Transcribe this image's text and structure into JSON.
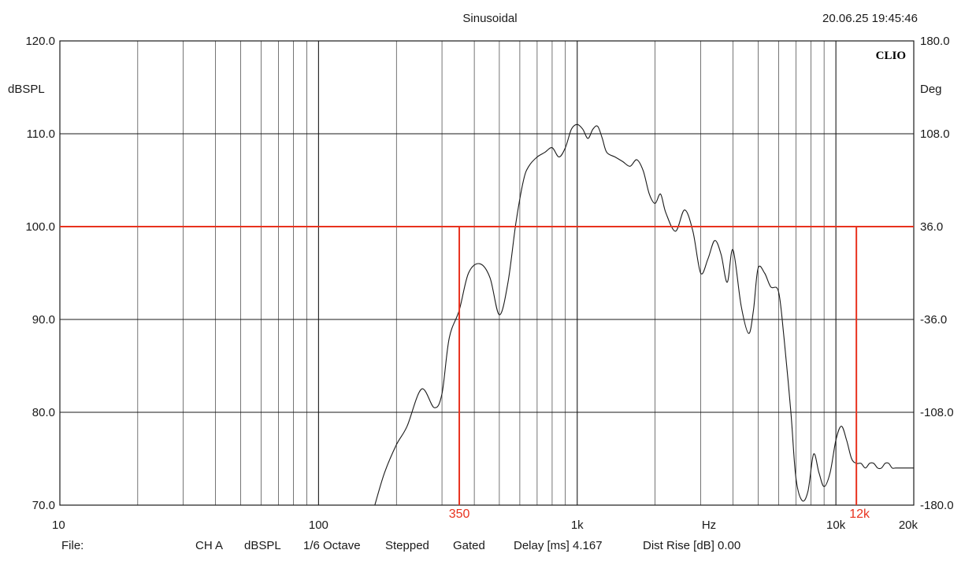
{
  "header": {
    "mode": "Sinusoidal",
    "timestamp": "20.06.25 19:45:46",
    "brand": "CLIO"
  },
  "footer": {
    "file_label": "File:",
    "channel": "CH A",
    "unit": "dBSPL",
    "smoothing": "1/6 Octave",
    "sweep": "Stepped",
    "window": "Gated",
    "delay": "Delay [ms] 4.167",
    "dist_rise": "Dist Rise [dB] 0.00"
  },
  "colors": {
    "trace": "#1a1a1a",
    "markers": "#e8321e",
    "grid": "#1a1a1a",
    "background": "#ffffff"
  },
  "chart_data": {
    "type": "line",
    "title": "Sinusoidal",
    "xlabel": "Hz",
    "ylabel": "dBSPL",
    "y2label": "Deg",
    "x_scale": "log",
    "xlim": [
      10,
      20000
    ],
    "ylim": [
      70,
      120
    ],
    "y2lim": [
      -180,
      180
    ],
    "grid": true,
    "x_ticks": [
      {
        "value": 10,
        "label": "10"
      },
      {
        "value": 100,
        "label": "100"
      },
      {
        "value": 1000,
        "label": "1k"
      },
      {
        "value": 10000,
        "label": "10k"
      },
      {
        "value": 20000,
        "label": "20k"
      }
    ],
    "x_unit_label": "Hz",
    "y_ticks": [
      {
        "value": 120,
        "label": "120.0"
      },
      {
        "value": 110,
        "label": "110.0"
      },
      {
        "value": 100,
        "label": "100.0"
      },
      {
        "value": 90,
        "label": "90.0"
      },
      {
        "value": 80,
        "label": "80.0"
      },
      {
        "value": 70,
        "label": "70.0"
      }
    ],
    "y2_ticks": [
      {
        "value": 180,
        "label": "180.0"
      },
      {
        "value": 108,
        "label": "108.0"
      },
      {
        "value": 36,
        "label": "36.0"
      },
      {
        "value": -36,
        "label": "-36.0"
      },
      {
        "value": -108,
        "label": "-108.0"
      },
      {
        "value": -180,
        "label": "-180.0"
      }
    ],
    "series": [
      {
        "x": [
          165,
          180,
          200,
          220,
          250,
          280,
          300,
          320,
          350,
          380,
          420,
          460,
          500,
          540,
          580,
          620,
          650,
          700,
          750,
          800,
          850,
          900,
          950,
          1000,
          1050,
          1100,
          1150,
          1200,
          1250,
          1300,
          1400,
          1500,
          1600,
          1700,
          1800,
          1900,
          2000,
          2100,
          2200,
          2400,
          2600,
          2800,
          3000,
          3200,
          3400,
          3600,
          3800,
          4000,
          4300,
          4600,
          4800,
          5000,
          5300,
          5600,
          6000,
          6300,
          6700,
          7000,
          7400,
          7800,
          8200,
          8600,
          9000,
          9500,
          10000,
          10500,
          11000,
          11500,
          12000,
          12500,
          13000,
          13500,
          14000,
          14500,
          15000,
          15500,
          16000,
          16500,
          17000,
          17500,
          18000,
          18500,
          19000,
          19500,
          20000
        ],
        "y": [
          70.0,
          73.5,
          76.5,
          78.5,
          82.5,
          80.5,
          82.0,
          88.0,
          91.0,
          95.0,
          96.0,
          94.5,
          90.5,
          94.0,
          100.5,
          105.0,
          106.5,
          107.5,
          108.0,
          108.5,
          107.5,
          108.5,
          110.5,
          111.0,
          110.5,
          109.5,
          110.5,
          110.8,
          109.5,
          108.0,
          107.5,
          107.0,
          106.5,
          107.2,
          106.0,
          103.5,
          102.5,
          103.5,
          101.5,
          99.5,
          101.8,
          99.5,
          95.0,
          96.5,
          98.5,
          97.0,
          94.0,
          97.5,
          91.5,
          88.5,
          91.0,
          95.5,
          95.0,
          93.5,
          93.0,
          88.0,
          80.0,
          73.0,
          70.5,
          71.5,
          75.5,
          73.5,
          72.0,
          73.5,
          77.0,
          78.5,
          77.0,
          75.0,
          74.5,
          74.5,
          74.0,
          74.5,
          74.5,
          74.0,
          74.0,
          74.5,
          74.5,
          74.0,
          74.0,
          74.0,
          74.0,
          74.0,
          74.0,
          74.0,
          74.0
        ]
      }
    ],
    "markers": {
      "level_db": 100,
      "low_freq": 350,
      "high_freq": 12000,
      "low_label": "350",
      "high_label": "12k"
    }
  }
}
